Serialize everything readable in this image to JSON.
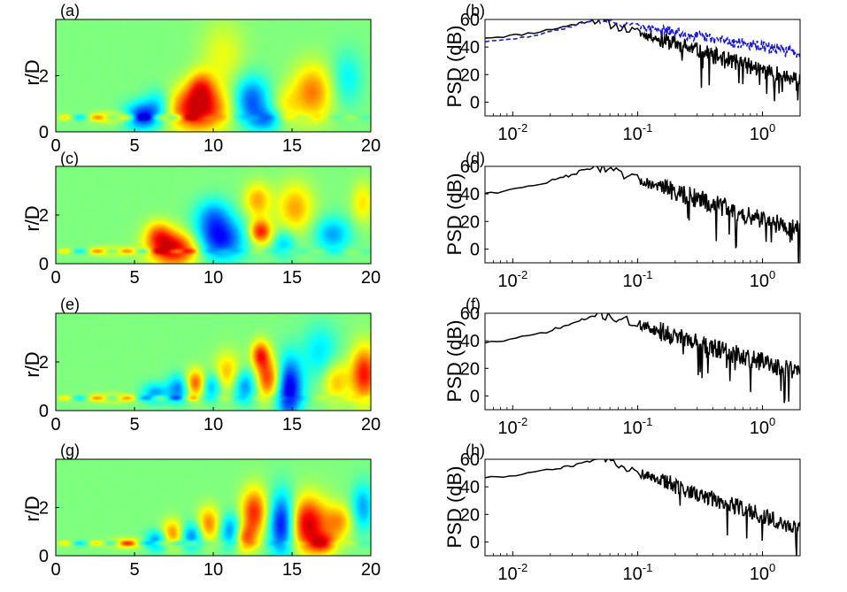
{
  "chart_data": [
    {
      "type": "heatmap",
      "label": "(a)",
      "ylabel": "r/D",
      "xlim": [
        0,
        20
      ],
      "ylim": [
        0,
        4
      ],
      "xticks": [
        "0",
        "5",
        "10",
        "15",
        "20"
      ],
      "yticks": [
        "0",
        "2"
      ],
      "blobs": [
        {
          "x": 9.0,
          "r": 0.8,
          "sx": 1.3,
          "sr": 0.55,
          "v": 1.0
        },
        {
          "x": 9.2,
          "r": 1.6,
          "sx": 0.6,
          "sr": 0.4,
          "v": 0.55
        },
        {
          "x": 5.5,
          "r": 0.55,
          "sx": 0.8,
          "sr": 0.35,
          "v": -0.8
        },
        {
          "x": 6.5,
          "r": 1.0,
          "sx": 0.6,
          "sr": 0.4,
          "v": -0.35
        },
        {
          "x": 12.4,
          "r": 1.1,
          "sx": 0.8,
          "sr": 0.6,
          "v": -0.7
        },
        {
          "x": 13.4,
          "r": 0.4,
          "sx": 0.7,
          "sr": 0.3,
          "v": -0.45
        },
        {
          "x": 16.3,
          "r": 1.4,
          "sx": 0.9,
          "sr": 0.7,
          "v": 0.6
        },
        {
          "x": 18.5,
          "r": 1.9,
          "sx": 0.7,
          "sr": 0.7,
          "v": -0.3
        },
        {
          "x": 10.6,
          "r": 2.7,
          "sx": 1.0,
          "sr": 0.9,
          "v": 0.25
        },
        {
          "x": 14.6,
          "r": 0.9,
          "sx": 0.6,
          "sr": 0.5,
          "v": 0.25
        },
        {
          "x": 3.5,
          "r": 0.5,
          "sx": 0.8,
          "sr": 0.15,
          "v": 0.4
        }
      ]
    },
    {
      "type": "line",
      "label": "(b)",
      "ylabel": "PSD (dB)",
      "xscale": "log",
      "xlim": [
        0.006,
        2
      ],
      "ylim": [
        -10,
        60
      ],
      "xticks": [
        "10^-2",
        "10^-1",
        "10^0"
      ],
      "yticks": [
        "0",
        "20",
        "40",
        "60"
      ],
      "series": [
        {
          "name": "solid",
          "color": "#000000",
          "style": "solid",
          "peak": 60,
          "peak_f": 0.045,
          "low": 47,
          "slope": 26,
          "noise": 6,
          "seed": 11
        },
        {
          "name": "dashed",
          "color": "#1a1acc",
          "style": "dashed",
          "peak": 60,
          "peak_f": 0.045,
          "low": 44,
          "slope": 14,
          "noise": 4,
          "seed": 29
        }
      ]
    },
    {
      "type": "heatmap",
      "label": "(c)",
      "ylabel": "r/D",
      "xlim": [
        0,
        20
      ],
      "ylim": [
        0,
        4
      ],
      "xticks": [
        "0",
        "5",
        "10",
        "15",
        "20"
      ],
      "yticks": [
        "0",
        "2"
      ],
      "blobs": [
        {
          "x": 7.5,
          "r": 0.6,
          "sx": 1.1,
          "sr": 0.5,
          "v": 1.0
        },
        {
          "x": 6.5,
          "r": 1.2,
          "sx": 0.6,
          "sr": 0.4,
          "v": 0.5
        },
        {
          "x": 10.4,
          "r": 1.0,
          "sx": 1.1,
          "sr": 0.6,
          "v": -0.85
        },
        {
          "x": 10.0,
          "r": 2.0,
          "sx": 0.8,
          "sr": 0.5,
          "v": -0.45
        },
        {
          "x": 13.0,
          "r": 1.3,
          "sx": 0.5,
          "sr": 0.35,
          "v": 0.85
        },
        {
          "x": 12.8,
          "r": 2.6,
          "sx": 0.6,
          "sr": 0.5,
          "v": 0.5
        },
        {
          "x": 15.2,
          "r": 2.3,
          "sx": 0.8,
          "sr": 0.7,
          "v": 0.5
        },
        {
          "x": 14.5,
          "r": 0.8,
          "sx": 0.5,
          "sr": 0.4,
          "v": -0.4
        },
        {
          "x": 17.6,
          "r": 1.2,
          "sx": 0.8,
          "sr": 0.5,
          "v": -0.5
        },
        {
          "x": 19.5,
          "r": 2.5,
          "sx": 0.5,
          "sr": 0.6,
          "v": 0.35
        },
        {
          "x": 3.5,
          "r": 0.5,
          "sx": 0.9,
          "sr": 0.15,
          "v": 0.35
        }
      ]
    },
    {
      "type": "line",
      "label": "(d)",
      "ylabel": "PSD (dB)",
      "xscale": "log",
      "xlim": [
        0.006,
        2
      ],
      "ylim": [
        -10,
        60
      ],
      "xticks": [
        "10^-2",
        "10^-1",
        "10^0"
      ],
      "yticks": [
        "0",
        "20",
        "40",
        "60"
      ],
      "series": [
        {
          "name": "solid",
          "color": "#000000",
          "style": "solid",
          "peak": 60,
          "peak_f": 0.045,
          "low": 41,
          "slope": 27,
          "noise": 7,
          "seed": 47
        }
      ]
    },
    {
      "type": "heatmap",
      "label": "(e)",
      "ylabel": "r/D",
      "xlim": [
        0,
        20
      ],
      "ylim": [
        0,
        4
      ],
      "xticks": [
        "0",
        "5",
        "10",
        "15",
        "20"
      ],
      "yticks": [
        "0",
        "2"
      ],
      "blobs": [
        {
          "x": 14.8,
          "r": 0.9,
          "sx": 0.6,
          "sr": 0.9,
          "v": -1.0
        },
        {
          "x": 13.5,
          "r": 1.3,
          "sx": 0.6,
          "sr": 0.6,
          "v": 0.8
        },
        {
          "x": 13.0,
          "r": 2.3,
          "sx": 0.4,
          "sr": 0.4,
          "v": 0.75
        },
        {
          "x": 12.0,
          "r": 1.0,
          "sx": 0.6,
          "sr": 0.5,
          "v": -0.6
        },
        {
          "x": 10.9,
          "r": 1.5,
          "sx": 0.6,
          "sr": 0.6,
          "v": 0.5
        },
        {
          "x": 9.8,
          "r": 1.0,
          "sx": 0.5,
          "sr": 0.4,
          "v": -0.6
        },
        {
          "x": 8.9,
          "r": 1.1,
          "sx": 0.5,
          "sr": 0.4,
          "v": 0.8
        },
        {
          "x": 7.8,
          "r": 0.9,
          "sx": 0.5,
          "sr": 0.4,
          "v": -0.6
        },
        {
          "x": 6.3,
          "r": 0.7,
          "sx": 0.6,
          "sr": 0.3,
          "v": -0.5
        },
        {
          "x": 19.6,
          "r": 1.5,
          "sx": 0.6,
          "sr": 0.8,
          "v": 0.85
        },
        {
          "x": 17.8,
          "r": 1.2,
          "sx": 0.6,
          "sr": 0.6,
          "v": 0.45
        },
        {
          "x": 16.8,
          "r": 2.4,
          "sx": 0.8,
          "sr": 0.8,
          "v": -0.35
        },
        {
          "x": 3.5,
          "r": 0.5,
          "sx": 1.0,
          "sr": 0.15,
          "v": 0.3
        }
      ]
    },
    {
      "type": "line",
      "label": "(f)",
      "ylabel": "PSD (dB)",
      "xscale": "log",
      "xlim": [
        0.006,
        2
      ],
      "ylim": [
        -10,
        60
      ],
      "xticks": [
        "10^-2",
        "10^-1",
        "10^0"
      ],
      "yticks": [
        "0",
        "20",
        "40",
        "60"
      ],
      "series": [
        {
          "name": "solid",
          "color": "#000000",
          "style": "solid",
          "peak": 60,
          "peak_f": 0.05,
          "low": 39,
          "slope": 26,
          "noise": 7,
          "seed": 71
        }
      ]
    },
    {
      "type": "heatmap",
      "label": "(g)",
      "ylabel": "r/D",
      "xlim": [
        0,
        20
      ],
      "ylim": [
        0,
        4
      ],
      "xticks": [
        "0",
        "5",
        "10",
        "15",
        "20"
      ],
      "yticks": [
        "0",
        "2"
      ],
      "blobs": [
        {
          "x": 16.0,
          "r": 1.3,
          "sx": 0.9,
          "sr": 0.8,
          "v": 1.0
        },
        {
          "x": 14.4,
          "r": 1.3,
          "sx": 0.6,
          "sr": 0.9,
          "v": -1.0
        },
        {
          "x": 12.6,
          "r": 1.8,
          "sx": 0.6,
          "sr": 0.7,
          "v": 0.8
        },
        {
          "x": 12.0,
          "r": 0.7,
          "sx": 0.5,
          "sr": 0.4,
          "v": 0.6
        },
        {
          "x": 11.1,
          "r": 1.0,
          "sx": 0.5,
          "sr": 0.5,
          "v": -0.6
        },
        {
          "x": 9.7,
          "r": 1.3,
          "sx": 0.5,
          "sr": 0.5,
          "v": 0.6
        },
        {
          "x": 8.6,
          "r": 0.8,
          "sx": 0.5,
          "sr": 0.4,
          "v": -0.6
        },
        {
          "x": 7.4,
          "r": 0.9,
          "sx": 0.5,
          "sr": 0.4,
          "v": 0.6
        },
        {
          "x": 6.4,
          "r": 0.6,
          "sx": 0.5,
          "sr": 0.3,
          "v": -0.6
        },
        {
          "x": 18.0,
          "r": 1.4,
          "sx": 0.6,
          "sr": 0.5,
          "v": 0.5
        },
        {
          "x": 17.0,
          "r": 0.5,
          "sx": 0.6,
          "sr": 0.3,
          "v": 0.6
        },
        {
          "x": 19.5,
          "r": 2.0,
          "sx": 0.5,
          "sr": 0.7,
          "v": -0.5
        },
        {
          "x": 4.5,
          "r": 0.5,
          "sx": 0.8,
          "sr": 0.15,
          "v": 0.45
        }
      ]
    },
    {
      "type": "line",
      "label": "(h)",
      "ylabel": "PSD (dB)",
      "xscale": "log",
      "xlim": [
        0.006,
        2
      ],
      "ylim": [
        -10,
        60
      ],
      "xticks": [
        "10^-2",
        "10^-1",
        "10^0"
      ],
      "yticks": [
        "0",
        "20",
        "40",
        "60"
      ],
      "series": [
        {
          "name": "solid",
          "color": "#000000",
          "style": "solid",
          "peak": 60,
          "peak_f": 0.05,
          "low": 47,
          "slope": 30,
          "noise": 6,
          "seed": 93
        }
      ]
    }
  ]
}
